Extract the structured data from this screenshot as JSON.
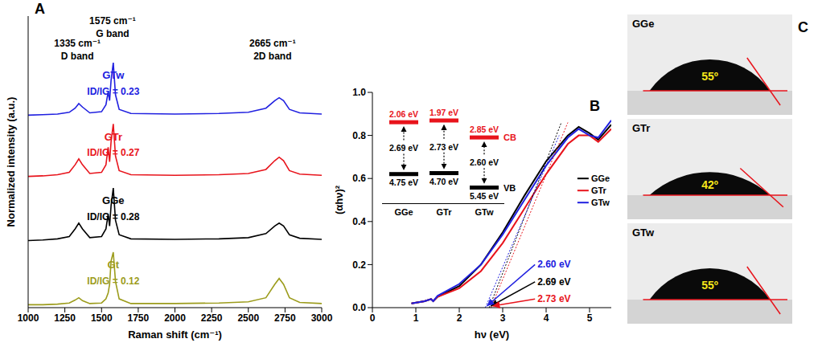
{
  "chart_data": [
    {
      "panel": "A",
      "type": "line",
      "x_label": "Raman shift (cm⁻¹)",
      "y_label": "Normalized intensity (a.u.)",
      "x": [
        1000,
        1100,
        1200,
        1280,
        1320,
        1345,
        1370,
        1420,
        1500,
        1530,
        1545,
        1555,
        1565,
        1580,
        1595,
        1620,
        1700,
        2000,
        2300,
        2500,
        2620,
        2680,
        2710,
        2740,
        2780,
        2850,
        3000
      ],
      "xlim": [
        1000,
        3000
      ],
      "xticks": [
        1000,
        1250,
        1500,
        1750,
        2000,
        2250,
        2500,
        2750,
        3000
      ],
      "ylim": [
        0,
        5
      ],
      "tick_labels": "x",
      "peaks": [
        {
          "value": 1335,
          "label": "1335 cm⁻¹",
          "name": "D band"
        },
        {
          "value": 1575,
          "label": "1575 cm⁻¹",
          "name": "G band"
        },
        {
          "value": 2665,
          "label": "2665 cm⁻¹",
          "name": "2D band"
        }
      ],
      "series": [
        {
          "name": "GTw",
          "color": "#2020e0",
          "annotations": [
            "ID/IG = 0.23"
          ],
          "values": [
            3.3,
            3.31,
            3.32,
            3.35,
            3.42,
            3.5,
            3.44,
            3.34,
            3.36,
            3.48,
            3.7,
            3.55,
            3.9,
            4.2,
            3.65,
            3.4,
            3.33,
            3.32,
            3.33,
            3.35,
            3.42,
            3.55,
            3.6,
            3.55,
            3.4,
            3.34,
            3.32
          ]
        },
        {
          "name": "GTr",
          "color": "#e8141c",
          "annotations": [
            "ID/IG = 0.27"
          ],
          "values": [
            2.25,
            2.26,
            2.28,
            2.32,
            2.45,
            2.55,
            2.45,
            2.3,
            2.32,
            2.45,
            2.75,
            2.5,
            2.85,
            3.15,
            2.6,
            2.35,
            2.28,
            2.27,
            2.28,
            2.3,
            2.37,
            2.52,
            2.58,
            2.52,
            2.35,
            2.29,
            2.27
          ]
        },
        {
          "name": "GGe",
          "color": "#000000",
          "annotations": [
            "ID/IG = 0.28"
          ],
          "values": [
            1.15,
            1.16,
            1.18,
            1.22,
            1.35,
            1.45,
            1.35,
            1.2,
            1.22,
            1.35,
            1.6,
            1.4,
            1.75,
            2.05,
            1.5,
            1.25,
            1.18,
            1.17,
            1.18,
            1.2,
            1.27,
            1.4,
            1.45,
            1.4,
            1.25,
            1.19,
            1.17
          ]
        },
        {
          "name": "Gt",
          "color": "#9c9c1c",
          "annotations": [
            "ID/IG = 0.12"
          ],
          "values": [
            0.05,
            0.05,
            0.06,
            0.08,
            0.13,
            0.17,
            0.12,
            0.07,
            0.08,
            0.15,
            0.25,
            0.4,
            0.8,
            0.95,
            0.45,
            0.15,
            0.07,
            0.07,
            0.08,
            0.1,
            0.17,
            0.4,
            0.5,
            0.4,
            0.17,
            0.09,
            0.07
          ]
        }
      ]
    },
    {
      "panel": "B",
      "type": "line",
      "x_label": "hν (eV)",
      "y_label": "(αhν)²",
      "x": [
        0.9,
        1.2,
        1.35,
        1.4,
        1.5,
        2.0,
        2.5,
        3.0,
        3.5,
        4.0,
        4.5,
        4.75,
        5.0,
        5.2,
        5.5
      ],
      "xlim": [
        0,
        5.5
      ],
      "xticks": [
        0,
        1,
        2,
        3,
        4,
        5
      ],
      "ylim": [
        0,
        1
      ],
      "yticks": [
        {
          "value": 0,
          "label": "0.0"
        },
        {
          "value": 0.2,
          "label": "0.2"
        },
        {
          "value": 0.4,
          "label": "0.4"
        },
        {
          "value": 0.6,
          "label": "0.6"
        },
        {
          "value": 0.8,
          "label": "0.8"
        },
        {
          "value": 1,
          "label": "1.0"
        }
      ],
      "legend": "right",
      "series": [
        {
          "name": "GGe",
          "color": "#000000",
          "values": [
            0.02,
            0.03,
            0.04,
            0.03,
            0.05,
            0.1,
            0.2,
            0.35,
            0.52,
            0.68,
            0.8,
            0.84,
            0.81,
            0.78,
            0.85
          ],
          "band_gap": {
            "value": 2.69,
            "label": "2.69 eV"
          },
          "tangent_end": [
            4.35,
            0.86
          ]
        },
        {
          "name": "GTr",
          "color": "#e8141c",
          "values": [
            0.02,
            0.03,
            0.04,
            0.03,
            0.05,
            0.09,
            0.17,
            0.3,
            0.46,
            0.62,
            0.76,
            0.8,
            0.8,
            0.77,
            0.83
          ],
          "band_gap": {
            "value": 2.73,
            "label": "2.73 eV"
          },
          "tangent_end": [
            4.5,
            0.86
          ]
        },
        {
          "name": "GTw",
          "color": "#2020e0",
          "values": [
            0.02,
            0.03,
            0.04,
            0.03,
            0.055,
            0.11,
            0.2,
            0.34,
            0.5,
            0.66,
            0.79,
            0.83,
            0.8,
            0.79,
            0.87
          ],
          "band_gap": {
            "value": 2.6,
            "label": "2.60 eV"
          },
          "tangent_end": [
            4.3,
            0.8
          ]
        }
      ],
      "energy_diagram": {
        "cb_label": "CB",
        "vb_label": "VB",
        "materials": [
          {
            "name": "GGe",
            "cb": {
              "value": 2.06,
              "label": "2.06 eV"
            },
            "band_gap": {
              "value": 2.69,
              "label": "2.69 eV"
            },
            "vb": {
              "value": 4.75,
              "label": "4.75 eV"
            }
          },
          {
            "name": "GTr",
            "cb": {
              "value": 1.97,
              "label": "1.97 eV"
            },
            "band_gap": {
              "value": 2.73,
              "label": "2.73 eV"
            },
            "vb": {
              "value": 4.7,
              "label": "4.70 eV"
            }
          },
          {
            "name": "GTw",
            "cb": {
              "value": 2.85,
              "label": "2.85 eV"
            },
            "band_gap": {
              "value": 2.6,
              "label": "2.60 eV"
            },
            "vb": {
              "value": 5.45,
              "label": "5.45 eV"
            }
          }
        ]
      }
    }
  ],
  "contact_angle_panel": {
    "panel": "C",
    "images": [
      {
        "name": "GGe",
        "contact_angle": {
          "value": 55,
          "label": "55º"
        }
      },
      {
        "name": "GTr",
        "contact_angle": {
          "value": 42,
          "label": "42º"
        }
      },
      {
        "name": "GTw",
        "contact_angle": {
          "value": 55,
          "label": "55º"
        }
      }
    ]
  }
}
